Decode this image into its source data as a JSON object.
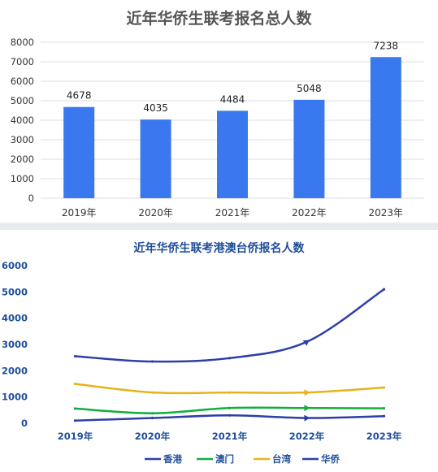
{
  "charts": {
    "top": {
      "title": "近年华侨生联考报名总人数",
      "chart_data": {
        "type": "bar",
        "title": "近年华侨生联考报名总人数",
        "categories": [
          "2019年",
          "2020年",
          "2021年",
          "2022年",
          "2023年"
        ],
        "values": [
          4678,
          4035,
          4484,
          5048,
          7238
        ],
        "data_labels": [
          "4678",
          "4035",
          "4484",
          "5048",
          "7238"
        ],
        "ylim": [
          0,
          8000
        ],
        "yticks": [
          "0",
          "1000",
          "2000",
          "3000",
          "4000",
          "5000",
          "6000",
          "7000",
          "8000"
        ],
        "grid": true,
        "legend": "none",
        "color": "#3a78f0"
      }
    },
    "bottom": {
      "title": "近年华侨生联考港澳台侨报名人数",
      "chart_data": {
        "type": "line",
        "title": "近年华侨生联考港澳台侨报名人数",
        "categories": [
          "2019年",
          "2020年",
          "2021年",
          "2022年",
          "2023年"
        ],
        "series": [
          {
            "name": "香港",
            "values": [
              100,
              200,
              300,
              200,
              270
            ],
            "color": "#2c3fa8"
          },
          {
            "name": "澳门",
            "values": [
              560,
              380,
              580,
              580,
              570
            ],
            "color": "#12ad3f"
          },
          {
            "name": "台湾",
            "values": [
              1500,
              1170,
              1170,
              1170,
              1360
            ],
            "color": "#e7b31a"
          },
          {
            "name": "华侨",
            "values": [
              2550,
              2350,
              2480,
              3100,
              5100
            ],
            "color": "#2c3fa8"
          }
        ],
        "ylim": [
          0,
          6000
        ],
        "yticks": [
          "0",
          "1000",
          "2000",
          "3000",
          "4000",
          "5000",
          "6000"
        ],
        "grid": false,
        "legend": "bottom"
      }
    }
  }
}
